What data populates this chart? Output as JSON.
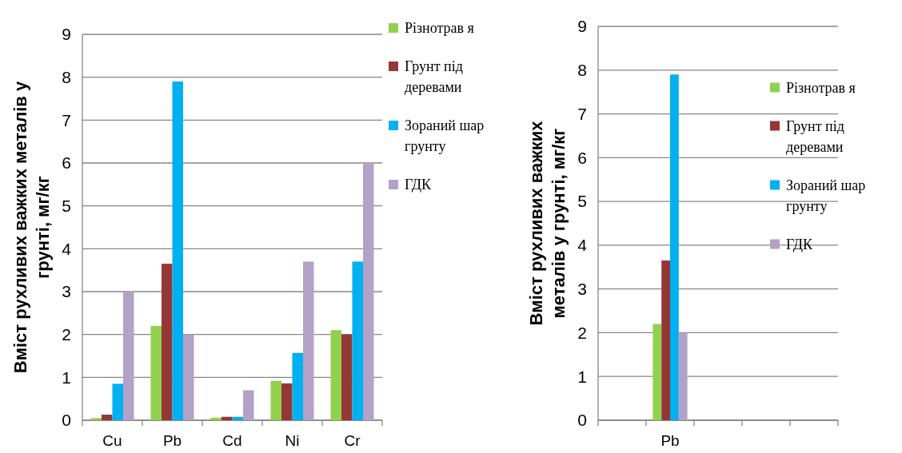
{
  "chart_data": [
    {
      "type": "bar",
      "ylabel": "Вміст рухливих важких металів у грунті, мг/кг",
      "categories": [
        "Cu",
        "Pb",
        "Cd",
        "Ni",
        "Cr"
      ],
      "ylim": [
        0,
        9
      ],
      "yticks": [
        0,
        1,
        2,
        3,
        4,
        5,
        6,
        7,
        8,
        9
      ],
      "grid": "y",
      "legend": "top right",
      "series": [
        {
          "name": "Різнотрав я",
          "color": "#92d050",
          "values": [
            0.05,
            2.2,
            0.06,
            0.92,
            2.1
          ]
        },
        {
          "name": "Грунт під деревами",
          "color": "#953735",
          "values": [
            0.13,
            3.65,
            0.08,
            0.86,
            2.0
          ]
        },
        {
          "name": "Зораний шар грунту",
          "color": "#00b0f0",
          "values": [
            0.85,
            7.9,
            0.08,
            1.57,
            3.7
          ]
        },
        {
          "name": "ГДК",
          "color": "#b3a2c7",
          "values": [
            3.0,
            2.0,
            0.7,
            3.7,
            6.0
          ]
        }
      ]
    },
    {
      "type": "bar",
      "ylabel": "Вміст рухливих важких металів у грунті, мг/кг",
      "categories": [
        null,
        "Pb",
        null,
        null,
        null
      ],
      "ylim": [
        0,
        9
      ],
      "yticks": [
        0,
        1,
        2,
        3,
        4,
        5,
        6,
        7,
        8,
        9
      ],
      "grid": "y",
      "legend": "right",
      "series": [
        {
          "name": "Різнотрав я",
          "color": "#92d050",
          "values": [
            null,
            2.2,
            null,
            null,
            null
          ]
        },
        {
          "name": "Грунт під деревами",
          "color": "#953735",
          "values": [
            null,
            3.65,
            null,
            null,
            null
          ]
        },
        {
          "name": "Зораний шар грунту",
          "color": "#00b0f0",
          "values": [
            null,
            7.9,
            null,
            null,
            null
          ]
        },
        {
          "name": "ГДК",
          "color": "#b3a2c7",
          "values": [
            null,
            2.0,
            null,
            null,
            null
          ]
        }
      ]
    }
  ]
}
